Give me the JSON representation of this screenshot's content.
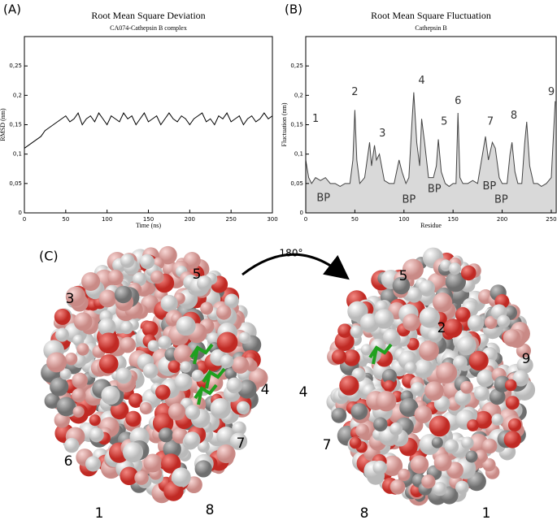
{
  "chart_data": [
    {
      "type": "line",
      "panel": "(A)",
      "title": "Root Mean Square Deviation",
      "subtitle": "CA074-Cathepsin B complex",
      "x_label": "Time (ns)",
      "y_label": "RMSD (nm)",
      "color": "#000000",
      "x": [
        0,
        5,
        10,
        15,
        20,
        25,
        30,
        35,
        40,
        45,
        50,
        55,
        60,
        65,
        70,
        75,
        80,
        85,
        90,
        95,
        100,
        105,
        110,
        115,
        120,
        125,
        130,
        135,
        140,
        145,
        150,
        155,
        160,
        165,
        170,
        175,
        180,
        185,
        190,
        195,
        200,
        205,
        210,
        215,
        220,
        225,
        230,
        235,
        240,
        245,
        250,
        255,
        260,
        265,
        270,
        275,
        280,
        285,
        290,
        295,
        300
      ],
      "values": [
        0.11,
        0.115,
        0.12,
        0.125,
        0.13,
        0.14,
        0.145,
        0.15,
        0.155,
        0.16,
        0.165,
        0.155,
        0.16,
        0.17,
        0.15,
        0.16,
        0.165,
        0.155,
        0.17,
        0.16,
        0.15,
        0.165,
        0.16,
        0.155,
        0.17,
        0.16,
        0.165,
        0.15,
        0.16,
        0.17,
        0.155,
        0.16,
        0.165,
        0.15,
        0.16,
        0.17,
        0.16,
        0.155,
        0.165,
        0.16,
        0.15,
        0.16,
        0.165,
        0.17,
        0.155,
        0.16,
        0.15,
        0.165,
        0.16,
        0.17,
        0.155,
        0.16,
        0.165,
        0.15,
        0.16,
        0.165,
        0.155,
        0.16,
        0.17,
        0.16,
        0.165
      ],
      "xlim": [
        0,
        300
      ],
      "xticks": [
        0,
        50,
        100,
        150,
        200,
        250,
        300
      ],
      "ylim": [
        0,
        0.3
      ],
      "yticks": [
        0,
        {
          "value": 0.05,
          "label": "0,05"
        },
        {
          "value": 0.1,
          "label": "0,1"
        },
        {
          "value": 0.15,
          "label": "0,15"
        },
        {
          "value": 0.2,
          "label": "0,2"
        },
        {
          "value": 0.25,
          "label": "0,25"
        }
      ]
    },
    {
      "type": "area",
      "panel": "(B)",
      "title": "Root Mean Square Fluctuation",
      "subtitle": "Cathepsin B",
      "x_label": "Residue",
      "y_label": "Fluctuation (nm)",
      "color": "#444444",
      "fill": "#d9d9d9",
      "x": [
        0,
        3,
        6,
        10,
        15,
        20,
        25,
        30,
        35,
        40,
        45,
        48,
        50,
        52,
        55,
        60,
        65,
        67,
        70,
        72,
        75,
        80,
        85,
        90,
        95,
        98,
        102,
        105,
        108,
        110,
        113,
        116,
        118,
        121,
        125,
        130,
        133,
        135,
        138,
        142,
        146,
        150,
        153,
        155,
        157,
        160,
        165,
        170,
        175,
        180,
        183,
        186,
        190,
        193,
        197,
        200,
        205,
        208,
        210,
        213,
        216,
        220,
        223,
        225,
        228,
        232,
        236,
        240,
        245,
        250,
        254
      ],
      "values": [
        0.09,
        0.06,
        0.05,
        0.06,
        0.055,
        0.06,
        0.05,
        0.05,
        0.045,
        0.05,
        0.05,
        0.09,
        0.175,
        0.09,
        0.05,
        0.06,
        0.12,
        0.08,
        0.115,
        0.09,
        0.1,
        0.055,
        0.05,
        0.05,
        0.09,
        0.07,
        0.05,
        0.06,
        0.15,
        0.205,
        0.12,
        0.08,
        0.16,
        0.12,
        0.06,
        0.06,
        0.08,
        0.125,
        0.07,
        0.05,
        0.045,
        0.05,
        0.05,
        0.17,
        0.06,
        0.05,
        0.05,
        0.055,
        0.05,
        0.1,
        0.13,
        0.09,
        0.12,
        0.11,
        0.06,
        0.05,
        0.05,
        0.1,
        0.12,
        0.07,
        0.05,
        0.05,
        0.12,
        0.155,
        0.08,
        0.05,
        0.05,
        0.045,
        0.05,
        0.06,
        0.19
      ],
      "xlim": [
        0,
        255
      ],
      "xticks": [
        0,
        50,
        100,
        150,
        200,
        250
      ],
      "ylim": [
        0,
        0.3
      ],
      "yticks": [
        0,
        {
          "value": 0.05,
          "label": "0,05"
        },
        {
          "value": 0.1,
          "label": "0,1"
        },
        {
          "value": 0.15,
          "label": "0,15"
        },
        {
          "value": 0.2,
          "label": "0,2"
        },
        {
          "value": 0.25,
          "label": "0,25"
        }
      ],
      "annotations": [
        "1",
        "2",
        "3",
        "4",
        "5",
        "6",
        "7",
        "8",
        "9",
        "BP",
        "BP",
        "BP",
        "BP",
        "BP"
      ]
    }
  ],
  "structure": {
    "panel": "(C)",
    "rotation": "180°",
    "left_labels": [
      "3",
      "5",
      "4",
      "7",
      "6",
      "1",
      "8"
    ],
    "right_labels": [
      "5",
      "2",
      "9",
      "4",
      "7",
      "8",
      "1"
    ]
  }
}
